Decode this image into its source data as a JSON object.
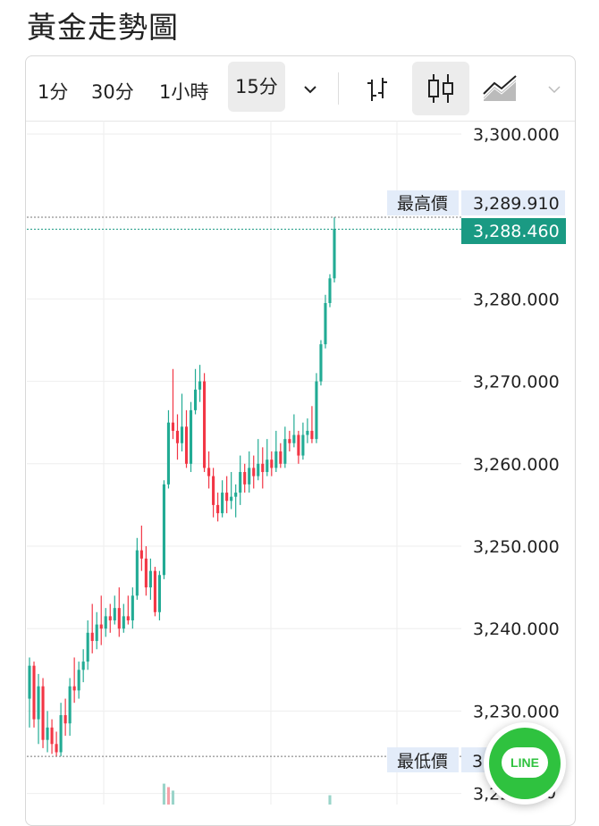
{
  "page_title": "黃金走勢圖",
  "toolbar": {
    "timeframes": [
      "1分",
      "30分",
      "1小時",
      "15分"
    ],
    "active_timeframe": "15分",
    "dropdown_icon": "chevron-down-icon",
    "chart_types": [
      {
        "icon": "bar-chart-icon",
        "active": false
      },
      {
        "icon": "candlestick-icon",
        "active": true
      },
      {
        "icon": "area-chart-icon",
        "active": false
      }
    ],
    "more_icon": "chevron-down-icon"
  },
  "price_axis": {
    "ticks": [
      "3,300.000",
      "3,280.000",
      "3,270.000",
      "3,260.000",
      "3,250.000",
      "3,240.000",
      "3,230.000",
      "3,22"
    ],
    "tick_values": [
      3300,
      3280,
      3270,
      3260,
      3250,
      3240,
      3230,
      3220
    ]
  },
  "markers": {
    "high_label": "最高價",
    "high_value": "3,289.910",
    "last_value": "3,288.460",
    "low_label": "最低價",
    "low_value": "3",
    "partial_tick": "0"
  },
  "colors": {
    "up": "#22ab94",
    "down": "#f23645",
    "last_price_bg": "#1a9a83",
    "label_bg": "#e3ecf9",
    "grid": "#eeeeee"
  },
  "line_button": {
    "label": "LINE"
  },
  "chart_data": {
    "type": "candlestick",
    "ylim": [
      3218,
      3301
    ],
    "high": 3289.91,
    "last": 3288.46,
    "low": 3224.5,
    "candles": [
      [
        3231.5,
        3235.5,
        3236.5,
        3228.0
      ],
      [
        3235.5,
        3229.0,
        3236.0,
        3228.0
      ],
      [
        3229.0,
        3233.0,
        3234.5,
        3226.0
      ],
      [
        3233.0,
        3226.5,
        3234.0,
        3225.5
      ],
      [
        3226.5,
        3228.0,
        3230.0,
        3225.0
      ],
      [
        3228.0,
        3226.0,
        3229.0,
        3224.8
      ],
      [
        3226.0,
        3225.0,
        3227.5,
        3224.5
      ],
      [
        3225.0,
        3229.5,
        3231.0,
        3224.5
      ],
      [
        3229.5,
        3228.5,
        3231.5,
        3227.0
      ],
      [
        3228.5,
        3233.0,
        3234.0,
        3227.0
      ],
      [
        3233.0,
        3232.5,
        3236.5,
        3231.0
      ],
      [
        3232.5,
        3235.0,
        3236.0,
        3231.5
      ],
      [
        3235.0,
        3236.0,
        3237.5,
        3233.5
      ],
      [
        3236.0,
        3239.5,
        3241.0,
        3235.0
      ],
      [
        3239.5,
        3238.5,
        3243.0,
        3237.0
      ],
      [
        3238.5,
        3240.5,
        3242.0,
        3237.5
      ],
      [
        3240.5,
        3240.0,
        3244.0,
        3238.0
      ],
      [
        3240.0,
        3241.5,
        3242.5,
        3239.0
      ],
      [
        3241.5,
        3241.0,
        3243.0,
        3239.5
      ],
      [
        3241.0,
        3242.5,
        3244.0,
        3240.5
      ],
      [
        3242.5,
        3240.0,
        3245.0,
        3239.0
      ],
      [
        3240.0,
        3241.5,
        3243.0,
        3239.5
      ],
      [
        3241.5,
        3241.0,
        3244.0,
        3240.5
      ],
      [
        3241.0,
        3244.0,
        3245.0,
        3240.0
      ],
      [
        3244.0,
        3249.5,
        3251.0,
        3243.5
      ],
      [
        3249.5,
        3248.5,
        3252.5,
        3247.0
      ],
      [
        3248.5,
        3245.0,
        3250.0,
        3244.0
      ],
      [
        3245.0,
        3247.0,
        3248.5,
        3243.5
      ],
      [
        3247.0,
        3242.0,
        3247.5,
        3241.5
      ],
      [
        3242.0,
        3246.5,
        3247.0,
        3241.0
      ],
      [
        3246.5,
        3257.5,
        3258.0,
        3246.0
      ],
      [
        3257.5,
        3265.0,
        3266.5,
        3257.0
      ],
      [
        3265.0,
        3264.0,
        3271.5,
        3263.0
      ],
      [
        3264.0,
        3262.5,
        3266.0,
        3260.5
      ],
      [
        3262.5,
        3264.5,
        3268.5,
        3261.5
      ],
      [
        3264.5,
        3260.0,
        3266.5,
        3259.5
      ],
      [
        3260.0,
        3266.5,
        3267.5,
        3259.0
      ],
      [
        3266.5,
        3269.0,
        3271.5,
        3266.0
      ],
      [
        3269.0,
        3270.0,
        3272.0,
        3267.5
      ],
      [
        3270.0,
        3259.5,
        3271.0,
        3259.0
      ],
      [
        3259.5,
        3258.5,
        3261.5,
        3257.0
      ],
      [
        3258.5,
        3255.0,
        3259.5,
        3253.5
      ],
      [
        3255.0,
        3254.0,
        3256.5,
        3253.0
      ],
      [
        3254.0,
        3256.5,
        3258.0,
        3253.5
      ],
      [
        3256.5,
        3255.5,
        3258.5,
        3254.0
      ],
      [
        3255.5,
        3256.0,
        3259.0,
        3254.5
      ],
      [
        3256.0,
        3256.5,
        3257.5,
        3253.5
      ],
      [
        3256.5,
        3259.0,
        3261.0,
        3255.0
      ],
      [
        3259.0,
        3257.5,
        3260.0,
        3256.5
      ],
      [
        3257.5,
        3259.5,
        3261.5,
        3256.5
      ],
      [
        3259.5,
        3258.5,
        3261.0,
        3257.0
      ],
      [
        3258.5,
        3260.0,
        3263.0,
        3258.0
      ],
      [
        3260.0,
        3259.0,
        3262.0,
        3257.0
      ],
      [
        3259.0,
        3260.5,
        3263.0,
        3258.5
      ],
      [
        3260.5,
        3259.5,
        3261.5,
        3258.5
      ],
      [
        3259.5,
        3261.5,
        3264.0,
        3259.0
      ],
      [
        3261.5,
        3260.0,
        3262.5,
        3259.5
      ],
      [
        3260.0,
        3263.0,
        3264.5,
        3259.5
      ],
      [
        3263.0,
        3262.5,
        3264.0,
        3261.5
      ],
      [
        3262.5,
        3263.5,
        3266.0,
        3262.0
      ],
      [
        3263.5,
        3261.0,
        3264.0,
        3260.0
      ],
      [
        3261.0,
        3263.5,
        3265.0,
        3260.5
      ],
      [
        3263.5,
        3264.0,
        3265.5,
        3262.5
      ],
      [
        3264.0,
        3263.0,
        3267.0,
        3262.5
      ],
      [
        3263.0,
        3270.0,
        3271.0,
        3262.5
      ],
      [
        3270.0,
        3274.5,
        3275.0,
        3269.5
      ],
      [
        3274.5,
        3279.5,
        3280.5,
        3274.0
      ],
      [
        3279.5,
        3282.5,
        3283.0,
        3279.0
      ],
      [
        3282.5,
        3288.5,
        3289.91,
        3282.0
      ]
    ],
    "volume": [
      {
        "i": 30,
        "v": 0.9
      },
      {
        "i": 31,
        "v": 0.75
      },
      {
        "i": 32,
        "v": 0.6
      },
      {
        "i": 67,
        "v": 0.4
      }
    ]
  }
}
